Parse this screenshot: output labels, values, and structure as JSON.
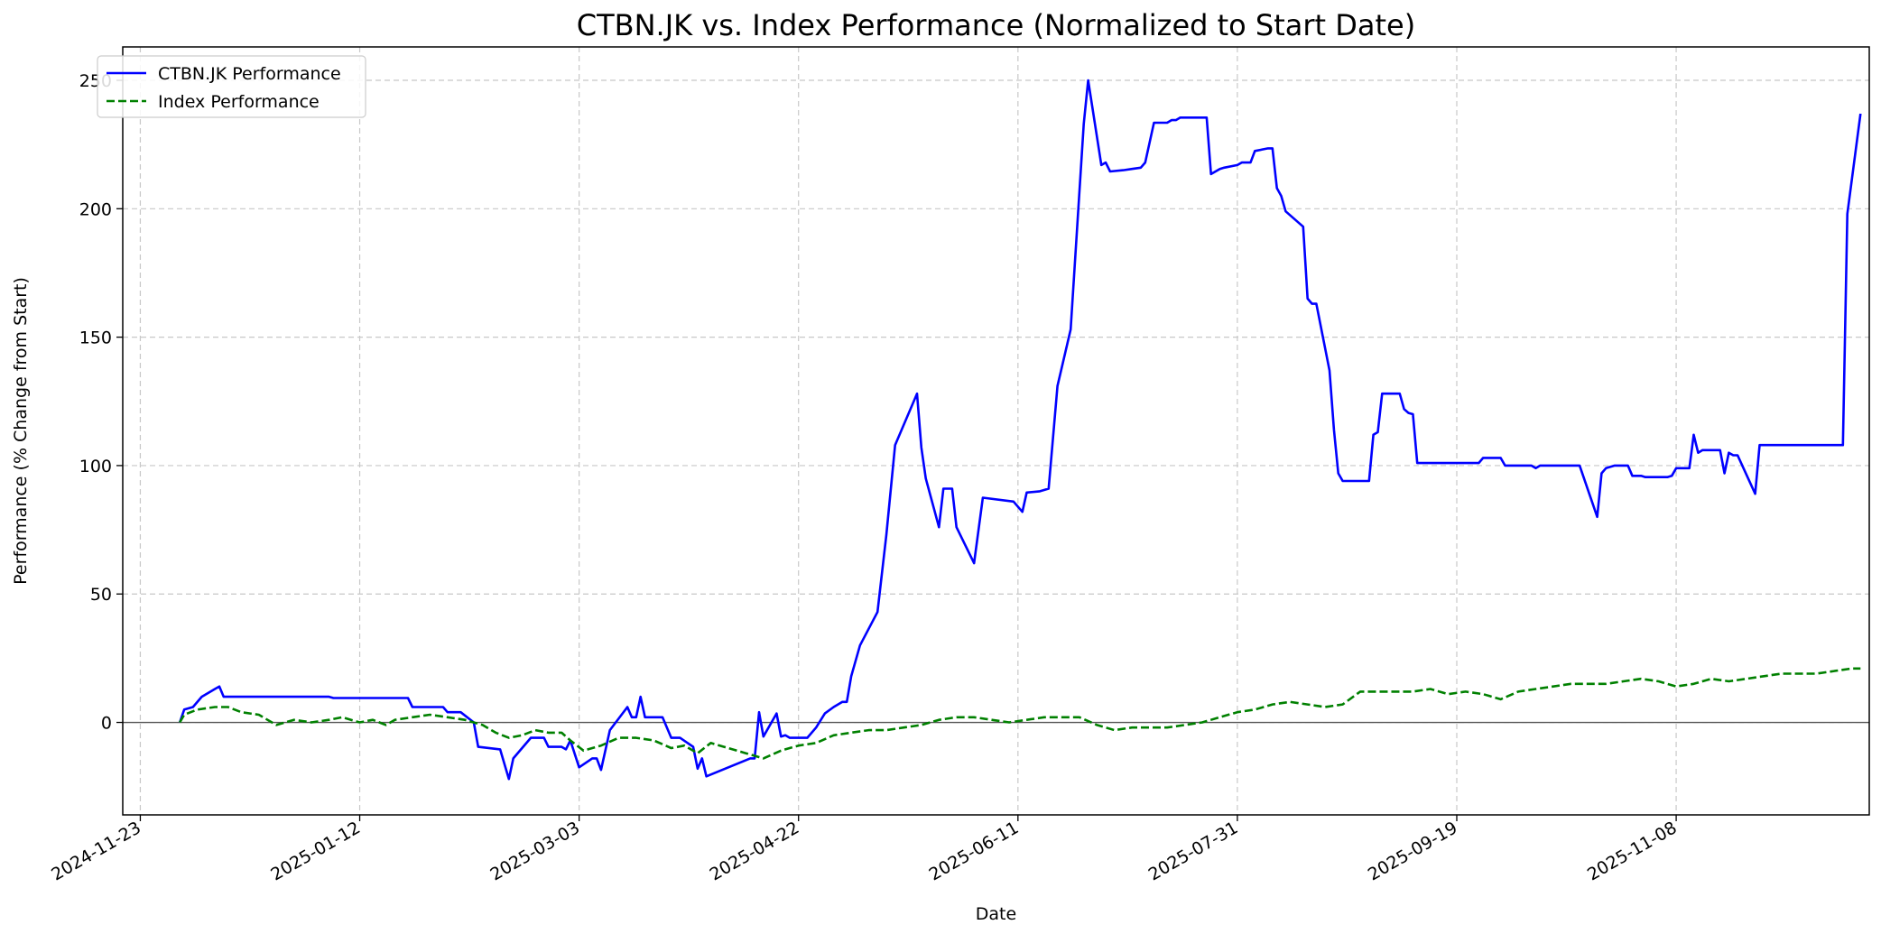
{
  "chart_data": {
    "type": "line",
    "title": "CTBN.JK vs. Index Performance (Normalized to Start Date)",
    "xlabel": "Date",
    "ylabel": "Performance (% Change from Start)",
    "x_axis": {
      "type": "date",
      "range": [
        "2024-11-19",
        "2025-12-22"
      ],
      "ticks": [
        "2024-11-23",
        "2025-01-12",
        "2025-03-03",
        "2025-04-22",
        "2025-06-11",
        "2025-07-31",
        "2025-09-19",
        "2025-11-08"
      ]
    },
    "y_axis": {
      "range": [
        -36,
        263
      ],
      "ticks": [
        0,
        50,
        100,
        150,
        200,
        250
      ]
    },
    "grid": true,
    "legend_position": "upper-left",
    "reference_line": {
      "y": 0,
      "color": "#555555"
    },
    "series": [
      {
        "name": "CTBN.JK Performance",
        "color": "#0000ff",
        "style": "solid",
        "points": [
          [
            "2024-12-02",
            0
          ],
          [
            "2024-12-03",
            5
          ],
          [
            "2024-12-05",
            6
          ],
          [
            "2024-12-07",
            10
          ],
          [
            "2024-12-10",
            13
          ],
          [
            "2024-12-11",
            14
          ],
          [
            "2024-12-12",
            10
          ],
          [
            "2024-12-20",
            10
          ],
          [
            "2025-01-01",
            10
          ],
          [
            "2025-01-05",
            10
          ],
          [
            "2025-01-06",
            9.5
          ],
          [
            "2025-01-20",
            9.5
          ],
          [
            "2025-01-23",
            9.5
          ],
          [
            "2025-01-24",
            6
          ],
          [
            "2025-01-31",
            6
          ],
          [
            "2025-02-01",
            4
          ],
          [
            "2025-02-04",
            4
          ],
          [
            "2025-02-07",
            0
          ],
          [
            "2025-02-08",
            -9.5
          ],
          [
            "2025-02-13",
            -10.5
          ],
          [
            "2025-02-15",
            -22
          ],
          [
            "2025-02-16",
            -14
          ],
          [
            "2025-02-20",
            -6
          ],
          [
            "2025-02-23",
            -6
          ],
          [
            "2025-02-24",
            -9.5
          ],
          [
            "2025-02-27",
            -9.5
          ],
          [
            "2025-02-28",
            -10.5
          ],
          [
            "2025-03-01",
            -7
          ],
          [
            "2025-03-03",
            -17.5
          ],
          [
            "2025-03-06",
            -14
          ],
          [
            "2025-03-07",
            -14
          ],
          [
            "2025-03-08",
            -18.5
          ],
          [
            "2025-03-10",
            -3
          ],
          [
            "2025-03-14",
            6
          ],
          [
            "2025-03-15",
            2
          ],
          [
            "2025-03-16",
            2
          ],
          [
            "2025-03-17",
            10
          ],
          [
            "2025-03-18",
            2
          ],
          [
            "2025-03-22",
            2
          ],
          [
            "2025-03-24",
            -6
          ],
          [
            "2025-03-26",
            -6
          ],
          [
            "2025-03-29",
            -9.5
          ],
          [
            "2025-03-30",
            -18
          ],
          [
            "2025-03-31",
            -14
          ],
          [
            "2025-04-01",
            -21
          ],
          [
            "2025-04-11",
            -14
          ],
          [
            "2025-04-12",
            -14
          ],
          [
            "2025-04-13",
            4
          ],
          [
            "2025-04-14",
            -5.5
          ],
          [
            "2025-04-17",
            3.5
          ],
          [
            "2025-04-18",
            -5.5
          ],
          [
            "2025-04-19",
            -5
          ],
          [
            "2025-04-20",
            -6
          ],
          [
            "2025-04-24",
            -6
          ],
          [
            "2025-04-26",
            -2
          ],
          [
            "2025-04-28",
            3.5
          ],
          [
            "2025-04-30",
            6
          ],
          [
            "2025-05-02",
            8
          ],
          [
            "2025-05-03",
            8
          ],
          [
            "2025-05-04",
            18
          ],
          [
            "2025-05-06",
            30
          ],
          [
            "2025-05-10",
            43
          ],
          [
            "2025-05-12",
            73
          ],
          [
            "2025-05-14",
            108
          ],
          [
            "2025-05-19",
            128
          ],
          [
            "2025-05-20",
            107
          ],
          [
            "2025-05-21",
            95
          ],
          [
            "2025-05-24",
            76
          ],
          [
            "2025-05-25",
            91
          ],
          [
            "2025-05-27",
            91
          ],
          [
            "2025-05-28",
            76
          ],
          [
            "2025-06-01",
            62
          ],
          [
            "2025-06-03",
            87.5
          ],
          [
            "2025-06-10",
            86
          ],
          [
            "2025-06-12",
            82
          ],
          [
            "2025-06-13",
            89.5
          ],
          [
            "2025-06-16",
            90
          ],
          [
            "2025-06-18",
            91
          ],
          [
            "2025-06-20",
            131
          ],
          [
            "2025-06-23",
            153
          ],
          [
            "2025-06-26",
            233
          ],
          [
            "2025-06-27",
            250
          ],
          [
            "2025-06-30",
            217
          ],
          [
            "2025-07-01",
            218
          ],
          [
            "2025-07-02",
            214.5
          ],
          [
            "2025-07-05",
            215
          ],
          [
            "2025-07-07",
            215.5
          ],
          [
            "2025-07-09",
            216
          ],
          [
            "2025-07-10",
            218
          ],
          [
            "2025-07-12",
            233.5
          ],
          [
            "2025-07-15",
            233.5
          ],
          [
            "2025-07-16",
            234.5
          ],
          [
            "2025-07-17",
            234.5
          ],
          [
            "2025-07-18",
            235.5
          ],
          [
            "2025-07-24",
            235.5
          ],
          [
            "2025-07-25",
            213.5
          ],
          [
            "2025-07-27",
            215.5
          ],
          [
            "2025-07-28",
            216
          ],
          [
            "2025-07-31",
            217
          ],
          [
            "2025-08-01",
            218
          ],
          [
            "2025-08-03",
            218
          ],
          [
            "2025-08-04",
            222.5
          ],
          [
            "2025-08-07",
            223.5
          ],
          [
            "2025-08-08",
            223.5
          ],
          [
            "2025-08-09",
            208
          ],
          [
            "2025-08-10",
            205
          ],
          [
            "2025-08-11",
            199
          ],
          [
            "2025-08-15",
            193
          ],
          [
            "2025-08-16",
            165
          ],
          [
            "2025-08-17",
            163
          ],
          [
            "2025-08-18",
            163
          ],
          [
            "2025-08-21",
            137
          ],
          [
            "2025-08-22",
            114
          ],
          [
            "2025-08-23",
            97
          ],
          [
            "2025-08-24",
            94
          ],
          [
            "2025-08-30",
            94
          ],
          [
            "2025-08-31",
            112
          ],
          [
            "2025-09-01",
            113
          ],
          [
            "2025-09-02",
            128
          ],
          [
            "2025-09-06",
            128
          ],
          [
            "2025-09-07",
            122
          ],
          [
            "2025-09-08",
            120.5
          ],
          [
            "2025-09-09",
            120
          ],
          [
            "2025-09-10",
            101
          ],
          [
            "2025-09-19",
            101
          ],
          [
            "2025-09-24",
            101
          ],
          [
            "2025-09-25",
            103
          ],
          [
            "2025-09-29",
            103
          ],
          [
            "2025-09-30",
            100
          ],
          [
            "2025-10-06",
            100
          ],
          [
            "2025-10-07",
            99
          ],
          [
            "2025-10-08",
            100
          ],
          [
            "2025-10-17",
            100
          ],
          [
            "2025-10-21",
            80
          ],
          [
            "2025-10-22",
            97
          ],
          [
            "2025-10-23",
            99
          ],
          [
            "2025-10-25",
            100
          ],
          [
            "2025-10-28",
            100
          ],
          [
            "2025-10-29",
            96
          ],
          [
            "2025-10-31",
            96
          ],
          [
            "2025-11-01",
            95.5
          ],
          [
            "2025-11-06",
            95.5
          ],
          [
            "2025-11-07",
            96
          ],
          [
            "2025-11-08",
            99
          ],
          [
            "2025-11-11",
            99
          ],
          [
            "2025-11-12",
            112
          ],
          [
            "2025-11-13",
            105
          ],
          [
            "2025-11-14",
            106
          ],
          [
            "2025-11-18",
            106
          ],
          [
            "2025-11-19",
            97
          ],
          [
            "2025-11-20",
            105
          ],
          [
            "2025-11-21",
            104
          ],
          [
            "2025-11-22",
            104
          ],
          [
            "2025-11-26",
            89
          ],
          [
            "2025-11-27",
            108
          ],
          [
            "2025-12-16",
            108
          ],
          [
            "2025-12-17",
            198
          ],
          [
            "2025-12-20",
            237
          ]
        ]
      },
      {
        "name": "Index Performance",
        "color": "#008000",
        "style": "dashed",
        "points": [
          [
            "2024-12-02",
            0
          ],
          [
            "2024-12-03",
            3
          ],
          [
            "2024-12-06",
            5
          ],
          [
            "2024-12-10",
            6
          ],
          [
            "2024-12-13",
            6
          ],
          [
            "2024-12-16",
            4
          ],
          [
            "2024-12-20",
            3
          ],
          [
            "2024-12-24",
            -1
          ],
          [
            "2024-12-28",
            1
          ],
          [
            "2025-01-01",
            0
          ],
          [
            "2025-01-05",
            1
          ],
          [
            "2025-01-08",
            2
          ],
          [
            "2025-01-12",
            0
          ],
          [
            "2025-01-15",
            1
          ],
          [
            "2025-01-18",
            -1
          ],
          [
            "2025-01-20",
            1
          ],
          [
            "2025-01-24",
            2
          ],
          [
            "2025-01-28",
            3
          ],
          [
            "2025-02-01",
            2
          ],
          [
            "2025-02-05",
            1
          ],
          [
            "2025-02-09",
            -1
          ],
          [
            "2025-02-12",
            -4
          ],
          [
            "2025-02-15",
            -6
          ],
          [
            "2025-02-18",
            -5
          ],
          [
            "2025-02-21",
            -3
          ],
          [
            "2025-02-24",
            -4
          ],
          [
            "2025-02-27",
            -4
          ],
          [
            "2025-03-01",
            -7
          ],
          [
            "2025-03-04",
            -11
          ],
          [
            "2025-03-08",
            -9
          ],
          [
            "2025-03-12",
            -6
          ],
          [
            "2025-03-16",
            -6
          ],
          [
            "2025-03-20",
            -7
          ],
          [
            "2025-03-24",
            -10
          ],
          [
            "2025-03-27",
            -9
          ],
          [
            "2025-03-30",
            -12
          ],
          [
            "2025-04-02",
            -8
          ],
          [
            "2025-04-06",
            -10
          ],
          [
            "2025-04-10",
            -12
          ],
          [
            "2025-04-14",
            -14
          ],
          [
            "2025-04-18",
            -11
          ],
          [
            "2025-04-22",
            -9
          ],
          [
            "2025-04-26",
            -8
          ],
          [
            "2025-04-30",
            -5
          ],
          [
            "2025-05-04",
            -4
          ],
          [
            "2025-05-08",
            -3
          ],
          [
            "2025-05-12",
            -3
          ],
          [
            "2025-05-16",
            -2
          ],
          [
            "2025-05-20",
            -1
          ],
          [
            "2025-05-24",
            1
          ],
          [
            "2025-05-28",
            2
          ],
          [
            "2025-06-01",
            2
          ],
          [
            "2025-06-05",
            1
          ],
          [
            "2025-06-09",
            0
          ],
          [
            "2025-06-13",
            1
          ],
          [
            "2025-06-17",
            2
          ],
          [
            "2025-06-21",
            2
          ],
          [
            "2025-06-25",
            2
          ],
          [
            "2025-06-29",
            -1
          ],
          [
            "2025-07-03",
            -3
          ],
          [
            "2025-07-07",
            -2
          ],
          [
            "2025-07-11",
            -2
          ],
          [
            "2025-07-15",
            -2
          ],
          [
            "2025-07-19",
            -1
          ],
          [
            "2025-07-23",
            0
          ],
          [
            "2025-07-27",
            2
          ],
          [
            "2025-07-31",
            4
          ],
          [
            "2025-08-04",
            5
          ],
          [
            "2025-08-08",
            7
          ],
          [
            "2025-08-12",
            8
          ],
          [
            "2025-08-16",
            7
          ],
          [
            "2025-08-20",
            6
          ],
          [
            "2025-08-24",
            7
          ],
          [
            "2025-08-28",
            12
          ],
          [
            "2025-09-01",
            12
          ],
          [
            "2025-09-05",
            12
          ],
          [
            "2025-09-09",
            12
          ],
          [
            "2025-09-13",
            13
          ],
          [
            "2025-09-17",
            11
          ],
          [
            "2025-09-21",
            12
          ],
          [
            "2025-09-25",
            11
          ],
          [
            "2025-09-29",
            9
          ],
          [
            "2025-10-03",
            12
          ],
          [
            "2025-10-07",
            13
          ],
          [
            "2025-10-11",
            14
          ],
          [
            "2025-10-15",
            15
          ],
          [
            "2025-10-19",
            15
          ],
          [
            "2025-10-23",
            15
          ],
          [
            "2025-10-27",
            16
          ],
          [
            "2025-10-31",
            17
          ],
          [
            "2025-11-04",
            16
          ],
          [
            "2025-11-08",
            14
          ],
          [
            "2025-11-12",
            15
          ],
          [
            "2025-11-16",
            17
          ],
          [
            "2025-11-20",
            16
          ],
          [
            "2025-11-24",
            17
          ],
          [
            "2025-11-28",
            18
          ],
          [
            "2025-12-02",
            19
          ],
          [
            "2025-12-06",
            19
          ],
          [
            "2025-12-10",
            19
          ],
          [
            "2025-12-14",
            20
          ],
          [
            "2025-12-18",
            21
          ],
          [
            "2025-12-20",
            21
          ]
        ]
      }
    ]
  }
}
